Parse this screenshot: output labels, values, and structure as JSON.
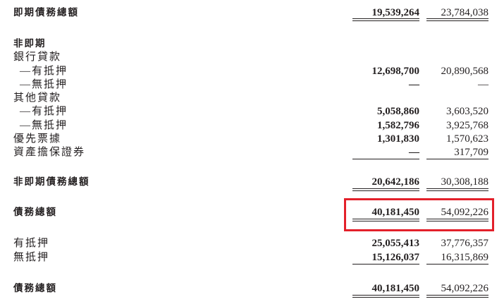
{
  "rows": [
    {
      "label": "即期債務總額",
      "v1": "19,539,264",
      "v2": "23,784,038"
    },
    {
      "label": "非即期"
    },
    {
      "label": "銀行貸款"
    },
    {
      "label": "—有抵押",
      "v1": "12,698,700",
      "v2": "20,890,568"
    },
    {
      "label": "—無抵押",
      "v1": "—",
      "v2": "—"
    },
    {
      "label": "其他貸款"
    },
    {
      "label": "—有抵押",
      "v1": "5,058,860",
      "v2": "3,603,520"
    },
    {
      "label": "—無抵押",
      "v1": "1,582,796",
      "v2": "3,925,768"
    },
    {
      "label": "優先票據",
      "v1": "1,301,830",
      "v2": "1,570,623"
    },
    {
      "label": "資產擔保證券",
      "v1": "—",
      "v2": "317,709"
    },
    {
      "label": "非即期債務總額",
      "v1": "20,642,186",
      "v2": "30,308,188"
    },
    {
      "label": "債務總額",
      "v1": "40,181,450",
      "v2": "54,092,226"
    },
    {
      "label": "有抵押",
      "v1": "25,055,413",
      "v2": "37,776,357"
    },
    {
      "label": "無抵押",
      "v1": "15,126,037",
      "v2": "16,315,869"
    },
    {
      "label": "債務總額",
      "v1": "40,181,450",
      "v2": "54,092,226"
    }
  ],
  "highlight_color": "#e3202a"
}
